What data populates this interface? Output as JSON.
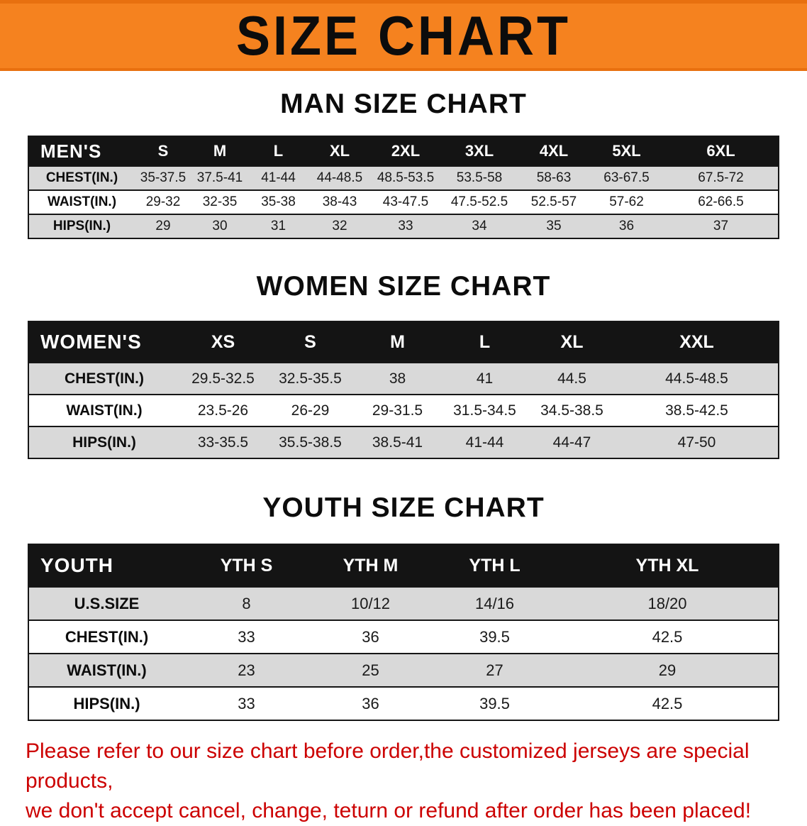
{
  "banner": {
    "title": "SIZE CHART"
  },
  "sections": {
    "men": {
      "title": "MAN SIZE CHART"
    },
    "women": {
      "title": "WOMEN SIZE CHART"
    },
    "youth": {
      "title": "YOUTH SIZE CHART"
    }
  },
  "tables": {
    "men": {
      "header": [
        "MEN'S",
        "S",
        "M",
        "L",
        "XL",
        "2XL",
        "3XL",
        "4XL",
        "5XL",
        "6XL"
      ],
      "rows": [
        {
          "label": "CHEST(IN.)",
          "values": [
            "35-37.5",
            "37.5-41",
            "41-44",
            "44-48.5",
            "48.5-53.5",
            "53.5-58",
            "58-63",
            "63-67.5",
            "67.5-72"
          ]
        },
        {
          "label": "WAIST(IN.)",
          "values": [
            "29-32",
            "32-35",
            "35-38",
            "38-43",
            "43-47.5",
            "47.5-52.5",
            "52.5-57",
            "57-62",
            "62-66.5"
          ]
        },
        {
          "label": "HIPS(IN.)",
          "values": [
            "29",
            "30",
            "31",
            "32",
            "33",
            "34",
            "35",
            "36",
            "37"
          ]
        }
      ]
    },
    "women": {
      "header": [
        "WOMEN'S",
        "XS",
        "S",
        "M",
        "L",
        "XL",
        "XXL"
      ],
      "rows": [
        {
          "label": "CHEST(IN.)",
          "values": [
            "29.5-32.5",
            "32.5-35.5",
            "38",
            "41",
            "44.5",
            "44.5-48.5"
          ]
        },
        {
          "label": "WAIST(IN.)",
          "values": [
            "23.5-26",
            "26-29",
            "29-31.5",
            "31.5-34.5",
            "34.5-38.5",
            "38.5-42.5"
          ]
        },
        {
          "label": "HIPS(IN.)",
          "values": [
            "33-35.5",
            "35.5-38.5",
            "38.5-41",
            "41-44",
            "44-47",
            "47-50"
          ]
        }
      ]
    },
    "youth": {
      "header": [
        "YOUTH",
        "YTH S",
        "YTH M",
        "YTH L",
        "YTH XL"
      ],
      "rows": [
        {
          "label": "U.S.SIZE",
          "values": [
            "8",
            "10/12",
            "14/16",
            "18/20"
          ]
        },
        {
          "label": "CHEST(IN.)",
          "values": [
            "33",
            "36",
            "39.5",
            "42.5"
          ]
        },
        {
          "label": "WAIST(IN.)",
          "values": [
            "23",
            "25",
            "27",
            "29"
          ]
        },
        {
          "label": "HIPS(IN.)",
          "values": [
            "33",
            "36",
            "39.5",
            "42.5"
          ]
        }
      ]
    }
  },
  "note": {
    "line1": "Please refer to our size chart before order,the customized jerseys are special products,",
    "line2": "we don't accept cancel, change, teturn or refund after order has been placed!"
  },
  "colors": {
    "banner_orange": "#f5821f",
    "table_header_bg": "#141414",
    "table_header_text": "#ffffff",
    "shaded_row": "#d9d9d9",
    "note_red": "#cc0000"
  }
}
